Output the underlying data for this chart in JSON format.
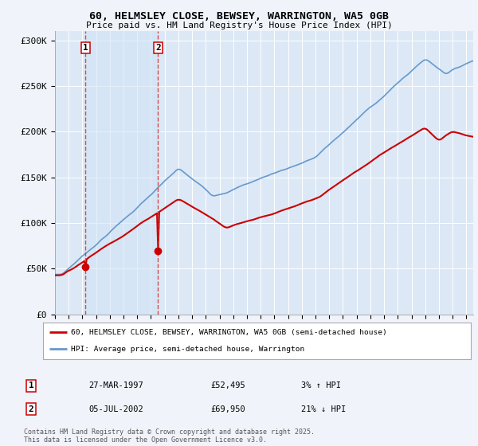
{
  "title_line1": "60, HELMSLEY CLOSE, BEWSEY, WARRINGTON, WA5 0GB",
  "title_line2": "Price paid vs. HM Land Registry's House Price Index (HPI)",
  "background_color": "#f0f4fa",
  "plot_bg_color": "#dce8f5",
  "ylabel_ticks": [
    "£0",
    "£50K",
    "£100K",
    "£150K",
    "£200K",
    "£250K",
    "£300K"
  ],
  "ytick_values": [
    0,
    50000,
    100000,
    150000,
    200000,
    250000,
    300000
  ],
  "ylim": [
    0,
    310000
  ],
  "xlim_start": 1995.0,
  "xlim_end": 2025.5,
  "legend_label_red": "60, HELMSLEY CLOSE, BEWSEY, WARRINGTON, WA5 0GB (semi-detached house)",
  "legend_label_blue": "HPI: Average price, semi-detached house, Warrington",
  "sale1_date": "27-MAR-1997",
  "sale1_price": "£52,495",
  "sale1_hpi": "3% ↑ HPI",
  "sale1_x": 1997.23,
  "sale1_y": 52495,
  "sale2_date": "05-JUL-2002",
  "sale2_price": "£69,950",
  "sale2_hpi": "21% ↓ HPI",
  "sale2_x": 2002.51,
  "sale2_y": 69950,
  "footnote": "Contains HM Land Registry data © Crown copyright and database right 2025.\nThis data is licensed under the Open Government Licence v3.0.",
  "hpi_color": "#6699cc",
  "sale_color": "#cc0000",
  "vline_color": "#cc3333",
  "marker_color": "#cc0000",
  "shade_color": "#c8d8f0"
}
